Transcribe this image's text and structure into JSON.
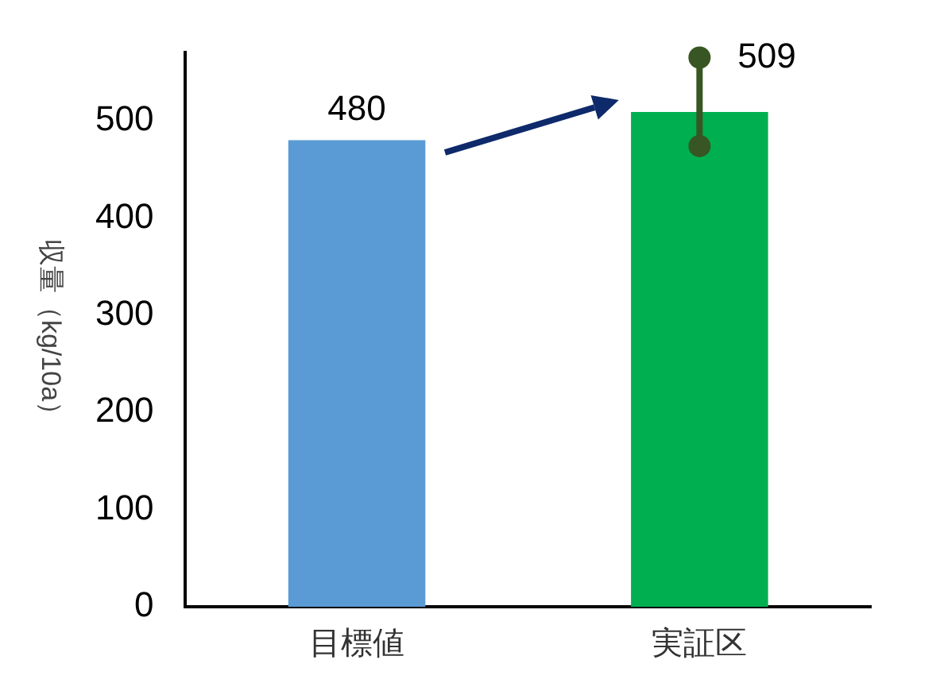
{
  "chart_data": {
    "type": "bar",
    "ylabel": "収量（kg/10a）",
    "categories": [
      "目標値",
      "実証区"
    ],
    "series": [
      {
        "colors": [
          "#5b9bd5",
          "#00b050"
        ],
        "values": [
          480,
          509
        ],
        "value_labels": [
          "480",
          "509"
        ]
      },
      {
        "type": "line",
        "color": "#375623",
        "x": [
          "実証区",
          "実証区"
        ],
        "values": [
          474,
          565
        ]
      }
    ],
    "marker": "circle",
    "line_style": "solid",
    "ylim": [
      0,
      570
    ],
    "yticks": [
      0,
      100,
      200,
      300,
      400,
      500
    ],
    "grid": false
  }
}
